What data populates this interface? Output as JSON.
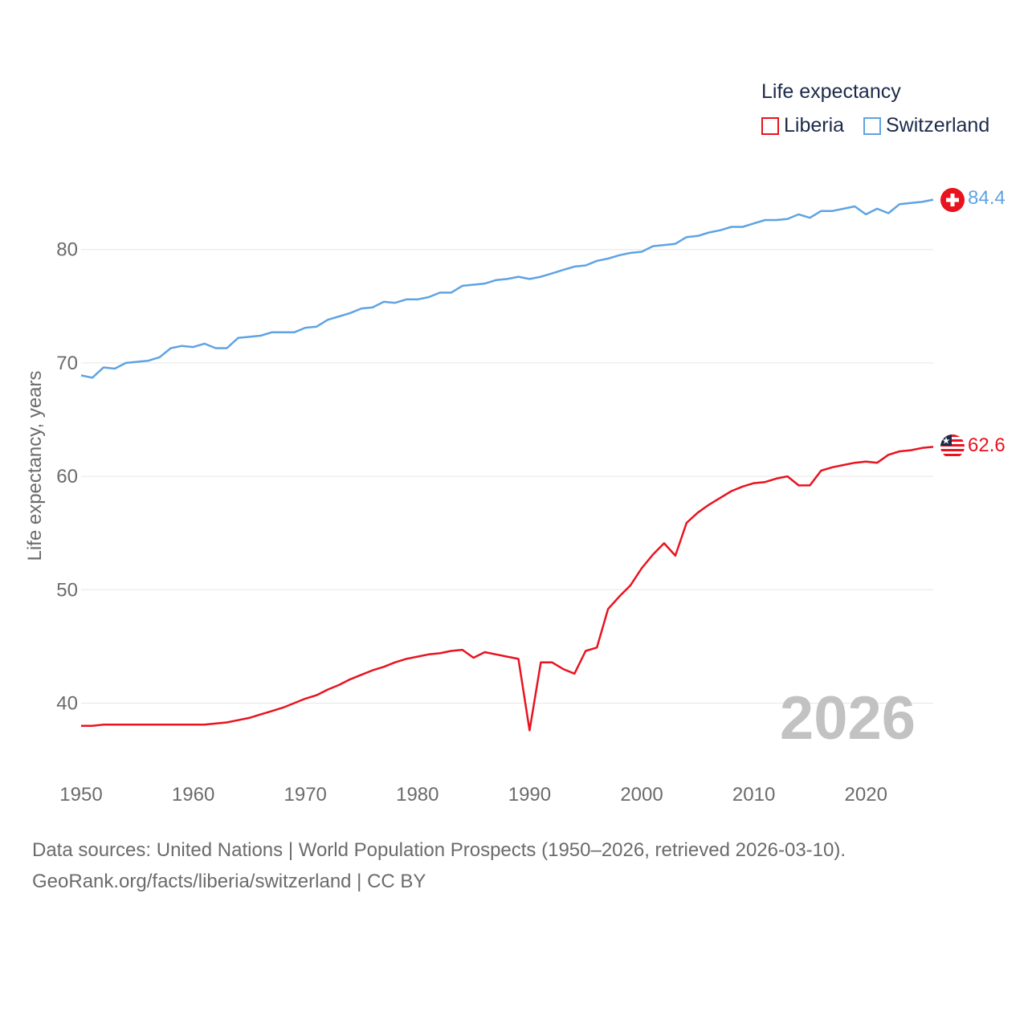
{
  "legend": {
    "title": "Life expectancy",
    "items": [
      {
        "label": "Liberia",
        "color": "#e8131f"
      },
      {
        "label": "Switzerland",
        "color": "#5ea3e3"
      }
    ]
  },
  "chart_data": {
    "type": "line",
    "ylabel": "Life expectancy, years",
    "xlabel": "",
    "year_watermark": "2026",
    "xlim": [
      1950,
      2026
    ],
    "ylim": [
      35,
      88
    ],
    "x_ticks": [
      1950,
      1960,
      1970,
      1980,
      1990,
      2000,
      2010,
      2020
    ],
    "y_ticks": [
      40,
      50,
      60,
      70,
      80
    ],
    "grid": true,
    "x": [
      1950,
      1951,
      1952,
      1953,
      1954,
      1955,
      1956,
      1957,
      1958,
      1959,
      1960,
      1961,
      1962,
      1963,
      1964,
      1965,
      1966,
      1967,
      1968,
      1969,
      1970,
      1971,
      1972,
      1973,
      1974,
      1975,
      1976,
      1977,
      1978,
      1979,
      1980,
      1981,
      1982,
      1983,
      1984,
      1985,
      1986,
      1987,
      1988,
      1989,
      1990,
      1991,
      1992,
      1993,
      1994,
      1995,
      1996,
      1997,
      1998,
      1999,
      2000,
      2001,
      2002,
      2003,
      2004,
      2005,
      2006,
      2007,
      2008,
      2009,
      2010,
      2011,
      2012,
      2013,
      2014,
      2015,
      2016,
      2017,
      2018,
      2019,
      2020,
      2021,
      2022,
      2023,
      2024,
      2025,
      2026
    ],
    "series": [
      {
        "name": "Liberia",
        "color": "#e8131f",
        "end_label": "62.6",
        "values": [
          38.0,
          38.0,
          38.1,
          38.1,
          38.1,
          38.1,
          38.1,
          38.1,
          38.1,
          38.1,
          38.1,
          38.1,
          38.2,
          38.3,
          38.5,
          38.7,
          39.0,
          39.3,
          39.6,
          40.0,
          40.4,
          40.7,
          41.2,
          41.6,
          42.1,
          42.5,
          42.9,
          43.2,
          43.6,
          43.9,
          44.1,
          44.3,
          44.4,
          44.6,
          44.7,
          44.0,
          44.5,
          44.3,
          44.1,
          43.9,
          37.6,
          43.6,
          43.6,
          43.0,
          42.6,
          44.6,
          44.9,
          48.3,
          49.4,
          50.4,
          51.9,
          53.1,
          54.1,
          53.0,
          55.9,
          56.8,
          57.5,
          58.1,
          58.7,
          59.1,
          59.4,
          59.5,
          59.8,
          60.0,
          59.2,
          59.2,
          60.5,
          60.8,
          61.0,
          61.2,
          61.3,
          61.2,
          61.9,
          62.2,
          62.3,
          62.5,
          62.6
        ]
      },
      {
        "name": "Switzerland",
        "color": "#5ea3e3",
        "end_label": "84.4",
        "values": [
          68.9,
          68.7,
          69.6,
          69.5,
          70.0,
          70.1,
          70.2,
          70.5,
          71.3,
          71.5,
          71.4,
          71.7,
          71.3,
          71.3,
          72.2,
          72.3,
          72.4,
          72.7,
          72.7,
          72.7,
          73.1,
          73.2,
          73.8,
          74.1,
          74.4,
          74.8,
          74.9,
          75.4,
          75.3,
          75.6,
          75.6,
          75.8,
          76.2,
          76.2,
          76.8,
          76.9,
          77.0,
          77.3,
          77.4,
          77.6,
          77.4,
          77.6,
          77.9,
          78.2,
          78.5,
          78.6,
          79.0,
          79.2,
          79.5,
          79.7,
          79.8,
          80.3,
          80.4,
          80.5,
          81.1,
          81.2,
          81.5,
          81.7,
          82.0,
          82.0,
          82.3,
          82.6,
          82.6,
          82.7,
          83.1,
          82.8,
          83.4,
          83.4,
          83.6,
          83.8,
          83.1,
          83.6,
          83.2,
          84.0,
          84.1,
          84.2,
          84.4
        ]
      }
    ]
  },
  "footer": {
    "line1": "Data sources: United Nations | World Population Prospects (1950–2026, retrieved 2026-03-10).",
    "line2": "GeoRank.org/facts/liberia/switzerland | CC BY"
  }
}
